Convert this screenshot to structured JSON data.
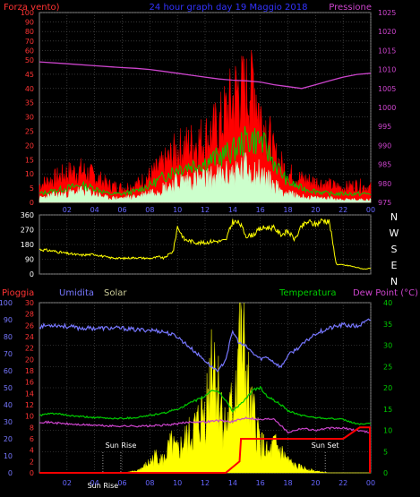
{
  "header": {
    "left_label": "Forza vento)",
    "center_label": "24 hour graph day 19 Maggio 2018",
    "right_label": "Pressione"
  },
  "colors": {
    "gust": "#ff0000",
    "avg_wind": "#ccffcc",
    "wind_green": "#00cc00",
    "pressure": "#cc44cc",
    "direction": "#ffff00",
    "humidity": "#7777ff",
    "temperature": "#00cc00",
    "dew_point": "#cc44cc",
    "rain": "#ff0000",
    "solar": "#ffff00",
    "grid": "#555555",
    "axis_text_pressure": "#cc44cc",
    "axis_text_red": "#ff3333",
    "axis_text_blue": "#7777ff",
    "axis_text_green": "#00cc00"
  },
  "chart_data": [
    {
      "type": "line",
      "title": "24 hour graph day 19 Maggio 2018",
      "ylabel": "Forza vento)",
      "y2label": "Pressione",
      "ylim": [
        0,
        100
      ],
      "y2lim": [
        975,
        1025
      ],
      "xlim": [
        0,
        24
      ],
      "x_ticks": [
        "02",
        "04",
        "06",
        "08",
        "10",
        "12",
        "14",
        "16",
        "18",
        "20",
        "22",
        "00"
      ],
      "y_ticks": [
        0,
        5,
        10,
        15,
        20,
        25,
        30,
        35,
        40,
        45,
        50,
        60,
        70,
        80,
        90,
        100
      ],
      "y2_ticks": [
        975,
        980,
        985,
        990,
        995,
        1000,
        1005,
        1010,
        1015,
        1020,
        1025
      ],
      "grid": true,
      "series": [
        {
          "name": "Pressione",
          "axis": "right",
          "x": [
            0,
            2,
            4,
            6,
            7,
            8,
            9,
            10,
            11,
            12,
            13,
            14,
            15,
            16,
            17,
            18,
            19,
            20,
            21,
            22,
            23,
            24
          ],
          "values": [
            1012,
            1011.5,
            1011,
            1010.5,
            1010.3,
            1010,
            1009.5,
            1009,
            1008.5,
            1008,
            1007.5,
            1007.2,
            1007,
            1006.7,
            1006,
            1005.5,
            1005,
            1006,
            1007,
            1008,
            1008.7,
            1009
          ]
        },
        {
          "name": "gust",
          "axis": "left",
          "x": [
            0,
            1,
            2,
            3,
            4,
            5,
            6,
            7,
            8,
            9,
            10,
            11,
            12,
            13,
            14,
            14.5,
            15,
            15.5,
            16,
            16.5,
            17,
            18,
            19,
            20,
            21,
            22,
            23,
            24
          ],
          "values": [
            6,
            8,
            10,
            11,
            9,
            6,
            5,
            6,
            9,
            13,
            18,
            20,
            22,
            26,
            35,
            40,
            38,
            44,
            30,
            25,
            16,
            10,
            8,
            7,
            6,
            5,
            6,
            5
          ]
        },
        {
          "name": "wind_green",
          "axis": "left",
          "x": [
            0,
            1,
            2,
            3,
            4,
            5,
            6,
            7,
            8,
            9,
            10,
            11,
            12,
            13,
            14,
            15,
            16,
            17,
            18,
            19,
            20,
            21,
            22,
            23,
            24
          ],
          "values": [
            3,
            4,
            5,
            6,
            5,
            3,
            3,
            4,
            6,
            9,
            12,
            13,
            14,
            16,
            18,
            22,
            22,
            14,
            7,
            5,
            4,
            3,
            3,
            3,
            3
          ]
        },
        {
          "name": "avg_wind",
          "axis": "left",
          "x": [
            0,
            1,
            2,
            3,
            4,
            5,
            6,
            7,
            8,
            9,
            10,
            11,
            12,
            13,
            14,
            15,
            16,
            17,
            18,
            19,
            20,
            21,
            22,
            23,
            24
          ],
          "values": [
            1.5,
            2.5,
            3,
            4,
            3,
            1.5,
            1.5,
            2,
            3.5,
            5,
            7,
            8,
            8,
            9,
            10,
            12,
            10,
            6,
            3,
            2,
            1.5,
            1.5,
            1,
            1,
            1
          ]
        }
      ]
    },
    {
      "type": "line",
      "ylabel": "",
      "ylim": [
        0,
        360
      ],
      "xlim": [
        0,
        24
      ],
      "y_ticks": [
        0,
        90,
        180,
        270,
        360
      ],
      "compass_labels": [
        "N",
        "W",
        "S",
        "E",
        "N"
      ],
      "grid": true,
      "series": [
        {
          "name": "direction",
          "x": [
            0,
            1,
            2,
            3,
            4,
            5,
            6,
            7,
            8,
            8.7,
            9,
            9.7,
            10,
            10.5,
            11,
            11.5,
            12,
            12.5,
            13,
            13.5,
            14,
            14.5,
            15,
            15.5,
            16,
            16.5,
            17,
            17.5,
            18,
            18.5,
            19,
            19.5,
            20,
            20.5,
            21,
            21.5,
            22,
            22.5,
            23,
            23.5,
            24
          ],
          "values": [
            150,
            140,
            125,
            115,
            120,
            100,
            95,
            100,
            95,
            105,
            95,
            140,
            290,
            210,
            200,
            190,
            190,
            200,
            200,
            205,
            320,
            310,
            230,
            240,
            275,
            285,
            280,
            240,
            260,
            210,
            290,
            320,
            300,
            330,
            320,
            60,
            55,
            50,
            40,
            30,
            35
          ]
        }
      ]
    },
    {
      "type": "line",
      "labels_top": {
        "pioggia": "Pioggia",
        "umidita": "Umidita",
        "solar": "Solar",
        "temperatura": "Temperatura",
        "dew_point": "Dew Point (°C)"
      },
      "ylim_humidity": [
        0,
        100
      ],
      "ylim_rain": [
        0,
        30
      ],
      "ylim_temp": [
        0,
        40
      ],
      "xlim": [
        0,
        24
      ],
      "x_ticks": [
        "02",
        "04",
        "06",
        "08",
        "10",
        "12",
        "14",
        "16",
        "18",
        "20",
        "22",
        "00"
      ],
      "humidity_ticks": [
        0,
        10,
        20,
        30,
        40,
        50,
        60,
        70,
        80,
        90,
        100
      ],
      "rain_ticks": [
        0,
        2,
        4,
        6,
        8,
        10,
        12,
        14,
        16,
        18,
        20,
        22,
        24,
        26,
        28,
        30
      ],
      "temp_ticks": [
        0,
        5,
        10,
        15,
        20,
        25,
        30,
        35,
        40
      ],
      "annotations": [
        {
          "text": "Sun Rise",
          "x": 5.9
        },
        {
          "text": "Sun Set",
          "x": 20.7
        },
        {
          "text": "Sun Rise",
          "x": 4.6
        }
      ],
      "series": [
        {
          "name": "Umidita",
          "axis": "humidity",
          "x": [
            0,
            1,
            2,
            3,
            4,
            5,
            6,
            7,
            8,
            9,
            10,
            11,
            12,
            12.5,
            13,
            13.5,
            14,
            14.5,
            15,
            15.5,
            16,
            16.5,
            17,
            17.5,
            18,
            19,
            20,
            21,
            22,
            23,
            24
          ],
          "values": [
            86,
            87,
            86,
            85,
            85,
            85,
            85,
            84,
            84,
            83,
            80,
            73,
            66,
            62,
            60,
            67,
            83,
            76,
            74,
            70,
            67,
            68,
            65,
            62,
            69,
            75,
            82,
            85,
            87,
            86,
            90
          ]
        },
        {
          "name": "Temperatura",
          "axis": "temp",
          "x": [
            0,
            1,
            2,
            3,
            4,
            5,
            6,
            7,
            8,
            9,
            10,
            11,
            12,
            12.5,
            13,
            13.5,
            14,
            14.5,
            15,
            15.5,
            16,
            16.5,
            17,
            17.5,
            18,
            19,
            20,
            21,
            22,
            23,
            24
          ],
          "values": [
            13.5,
            14,
            13.5,
            13.2,
            13,
            12.8,
            12.8,
            13,
            13.5,
            14,
            15,
            16.5,
            18,
            19.5,
            19,
            17,
            14.5,
            16,
            17.5,
            19.5,
            20,
            18,
            17,
            16,
            14.5,
            13.5,
            13,
            12.8,
            12.5,
            11.5,
            11.5
          ]
        },
        {
          "name": "Dew Point (°C)",
          "axis": "temp",
          "x": [
            0,
            1,
            2,
            3,
            4,
            5,
            6,
            7,
            8,
            9,
            10,
            11,
            12,
            13,
            14,
            15,
            16,
            17,
            18,
            19,
            20,
            21,
            22,
            23,
            24
          ],
          "values": [
            12,
            11.8,
            11.5,
            11.3,
            11.2,
            11,
            11,
            11,
            11,
            11.2,
            11.5,
            12,
            12,
            12.3,
            12,
            13,
            12.5,
            12.8,
            9.5,
            10.5,
            10,
            10.5,
            10.5,
            10,
            9.5
          ]
        },
        {
          "name": "Pioggia",
          "axis": "rain",
          "x": [
            0,
            13.5,
            14.5,
            14.6,
            20.5,
            22,
            23.2,
            24
          ],
          "values": [
            0,
            0,
            2,
            6,
            6,
            6,
            8,
            8
          ]
        },
        {
          "name": "Solar",
          "axis": "humidity",
          "x": [
            0,
            6,
            7,
            7.5,
            8,
            8.5,
            9,
            9.5,
            10,
            10.5,
            11,
            11.5,
            12,
            12.3,
            12.5,
            12.8,
            13,
            13.5,
            14,
            14.3,
            14.5,
            14.8,
            15,
            15.3,
            15.6,
            16,
            16.3,
            16.6,
            17,
            17.5,
            18,
            18.5,
            19,
            19.5,
            20,
            21,
            24
          ],
          "values": [
            0,
            0,
            1,
            3,
            6,
            10,
            7,
            16,
            12,
            18,
            22,
            28,
            36,
            48,
            80,
            55,
            45,
            25,
            38,
            62,
            78,
            66,
            56,
            34,
            30,
            18,
            14,
            10,
            16,
            12,
            7,
            4,
            3,
            2,
            1,
            0,
            0
          ]
        }
      ]
    }
  ]
}
